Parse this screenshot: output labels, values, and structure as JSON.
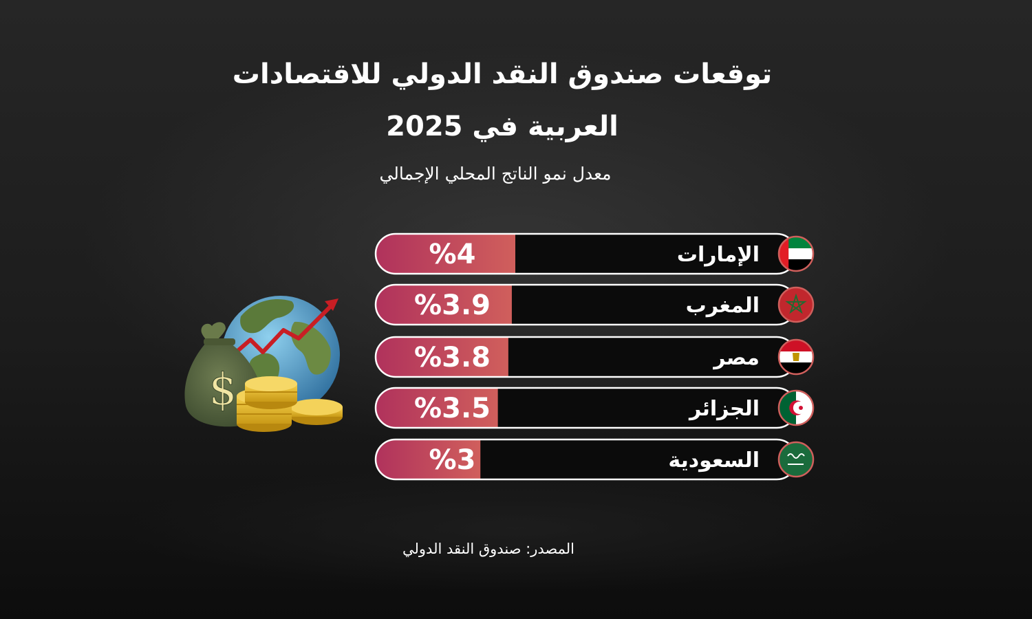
{
  "title_line1": "توقعات صندوق النقد الدولي للاقتصادات",
  "title_line2": "العربية في 2025",
  "subtitle": "معدل نمو الناتج المحلي الإجمالي",
  "source": "المصدر: صندوق النقد الدولي",
  "colors": {
    "background": "#1f1f1f",
    "value_bar_start": "#b0325c",
    "value_bar_end": "#d05f5c",
    "outline": "#ffffff"
  },
  "illustration_icon": "money-bag-globe-growth-icon",
  "chart_data": {
    "type": "bar",
    "categories": [
      "الإمارات",
      "المغرب",
      "مصر",
      "الجزائر",
      "السعودية"
    ],
    "values": [
      4,
      3.9,
      3.8,
      3.5,
      3
    ],
    "value_labels": [
      "%4",
      "%3.9",
      "%3.8",
      "%3.5",
      "%3"
    ],
    "flags": [
      "uae-flag-icon",
      "morocco-flag-icon",
      "egypt-flag-icon",
      "algeria-flag-icon",
      "saudi-flag-icon"
    ],
    "unit": "%"
  }
}
